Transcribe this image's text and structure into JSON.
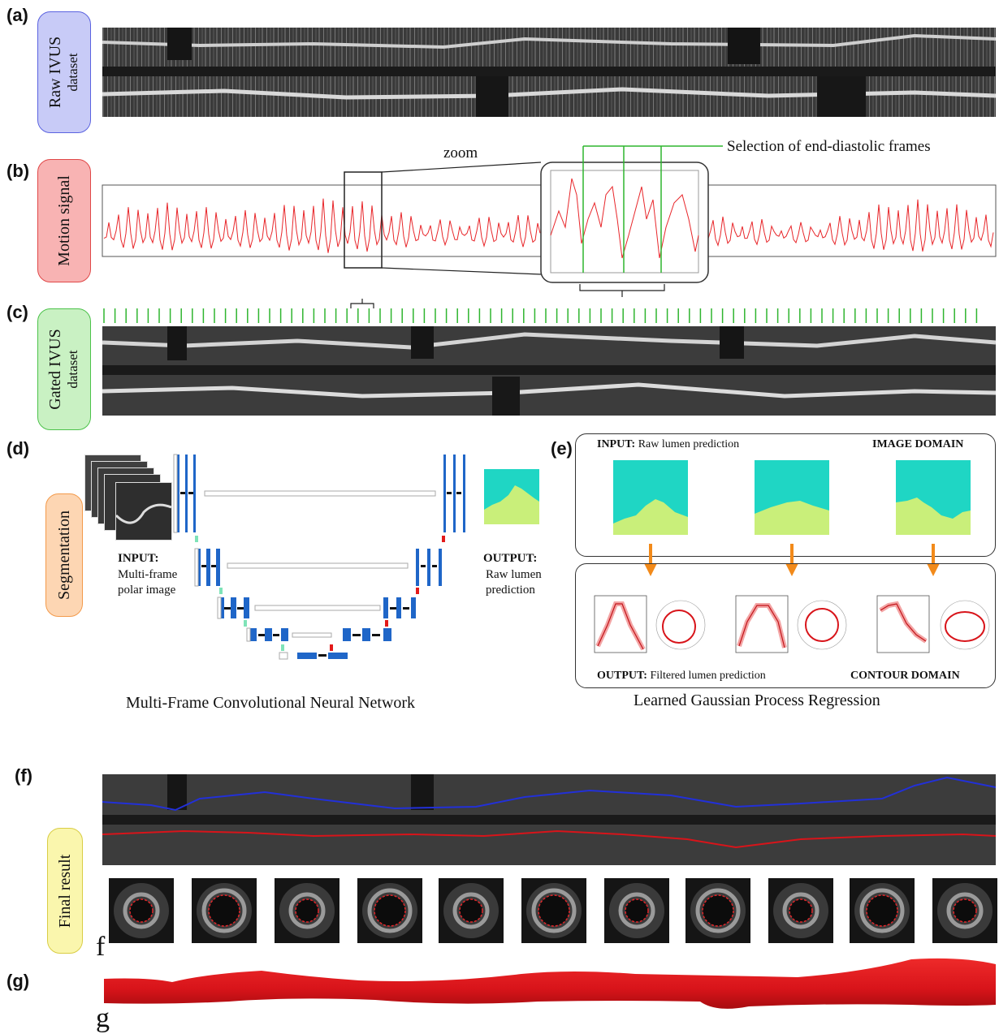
{
  "panels": {
    "a": {
      "label": "(a)",
      "side_line1": "Raw IVUS",
      "side_line2": "dataset",
      "accent": "#5b63e0"
    },
    "b": {
      "label": "(b)",
      "side_line1": "Motion signal",
      "zoom_label": "zoom",
      "selection_label": "Selection of end-diastolic frames",
      "accent": "#e04848"
    },
    "c": {
      "label": "(c)",
      "side_line1": "Gated IVUS",
      "side_line2": "dataset",
      "accent": "#4cc24a"
    },
    "d": {
      "label": "(d)",
      "side_line1": "Segmentation",
      "input_title": "INPUT:",
      "input_line1": "Multi-frame",
      "input_line2": "polar image",
      "output_title": "OUTPUT:",
      "output_line1": "Raw lumen",
      "output_line2": "prediction",
      "caption": "Multi-Frame Convolutional Neural Network"
    },
    "e": {
      "label": "(e)",
      "input_title": "INPUT:",
      "input_text": "Raw lumen prediction",
      "image_domain": "IMAGE DOMAIN",
      "output_title": "OUTPUT:",
      "output_text": "Filtered lumen prediction",
      "contour_domain": "CONTOUR DOMAIN",
      "caption": "Learned Gaussian Process Regression"
    },
    "f": {
      "label": "(f)",
      "side_line1": "Final result",
      "letter": "f"
    },
    "g": {
      "label": "(g)",
      "letter": "g"
    }
  },
  "colors": {
    "lumen_teal": "#1fd6c4",
    "lumen_lime": "#c9ef7a",
    "signal_red": "#e8262a",
    "gate_green": "#2fb52f",
    "unet_blue": "#1f66c8",
    "arrow_orange": "#f28a1a",
    "contour_blue": "#2230d8",
    "vessel_red": "#d8141a"
  }
}
